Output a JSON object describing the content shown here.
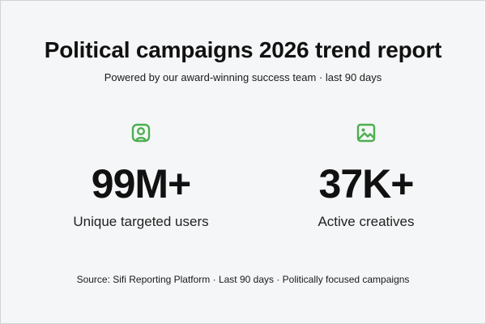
{
  "header": {
    "title": "Political campaigns 2026 trend report",
    "subtitle": "Powered by our award-winning success team · last 90 days"
  },
  "stats": [
    {
      "icon": "user-icon",
      "value": "99M+",
      "label": "Unique targeted users"
    },
    {
      "icon": "image-icon",
      "value": "37K+",
      "label": "Active creatives"
    }
  ],
  "footer": {
    "source": "Source: Sifi Reporting Platform · Last 90 days · Politically focused campaigns"
  },
  "colors": {
    "accent": "#4caf50",
    "text": "#111111",
    "background": "#f5f6f7",
    "border": "#cfd3d8"
  }
}
